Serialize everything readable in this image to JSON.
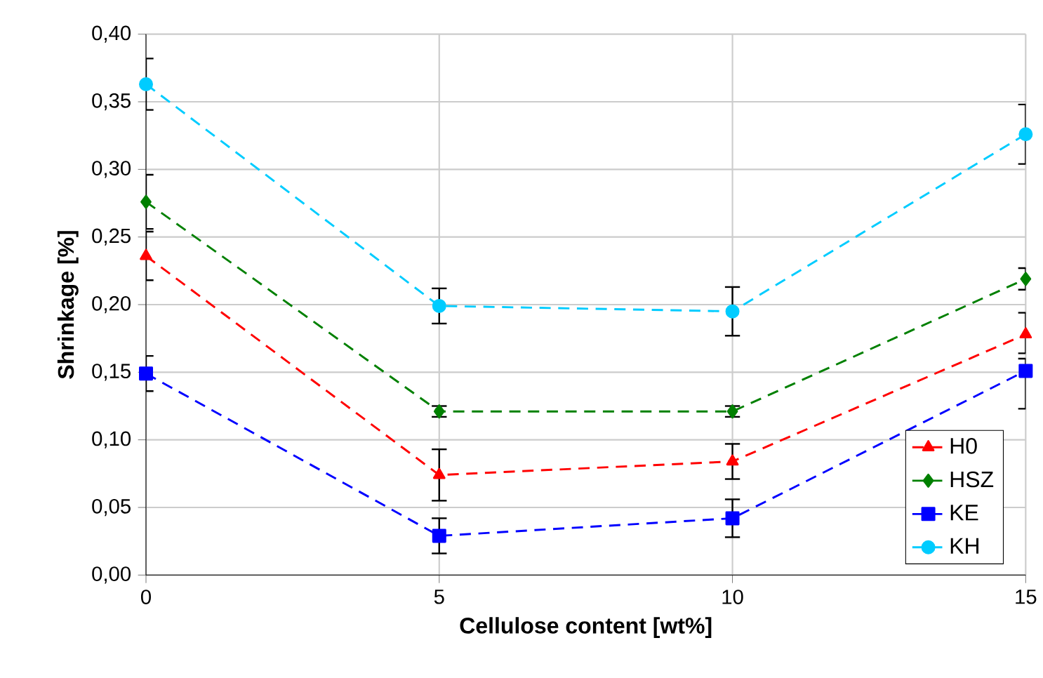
{
  "chart_data": {
    "type": "line",
    "xlabel": "Cellulose content [wt%]",
    "ylabel": "Shrinkage [%]",
    "x": [
      0,
      5,
      10,
      15
    ],
    "series": [
      {
        "name": "H0",
        "color": "#ff0000",
        "marker": "triangle",
        "values": [
          0.236,
          0.074,
          0.084,
          0.178
        ],
        "errors": [
          0.018,
          0.019,
          0.013,
          [
            0.164,
            0.194
          ]
        ]
      },
      {
        "name": "HSZ",
        "color": "#008000",
        "marker": "diamond",
        "values": [
          0.276,
          0.121,
          0.121,
          0.219
        ],
        "errors": [
          0.02,
          0.004,
          0.004,
          0.008
        ]
      },
      {
        "name": "KE",
        "color": "#0000ff",
        "marker": "square",
        "values": [
          0.149,
          0.029,
          0.042,
          0.151
        ],
        "errors": [
          0.013,
          0.013,
          0.014,
          [
            0.123,
            0.16
          ]
        ]
      },
      {
        "name": "KH",
        "color": "#00ccff",
        "marker": "circle",
        "values": [
          0.363,
          0.199,
          0.195,
          0.326
        ],
        "errors": [
          0.019,
          0.013,
          0.018,
          0.022
        ]
      }
    ],
    "xlim": [
      0,
      15
    ],
    "xticks": [
      0,
      5,
      10,
      15
    ],
    "ylim": [
      0,
      0.4
    ],
    "yticks": [
      {
        "value": 0,
        "label": "0,00"
      },
      {
        "value": 0.05,
        "label": "0,05"
      },
      {
        "value": 0.1,
        "label": "0,10"
      },
      {
        "value": 0.15,
        "label": "0,15"
      },
      {
        "value": 0.2,
        "label": "0,20"
      },
      {
        "value": 0.25,
        "label": "0,25"
      },
      {
        "value": 0.3,
        "label": "0,30"
      },
      {
        "value": 0.35,
        "label": "0,35"
      },
      {
        "value": 0.4,
        "label": "0,40"
      }
    ],
    "grid": true,
    "legend": "bottom right",
    "line_style": "dashed"
  }
}
